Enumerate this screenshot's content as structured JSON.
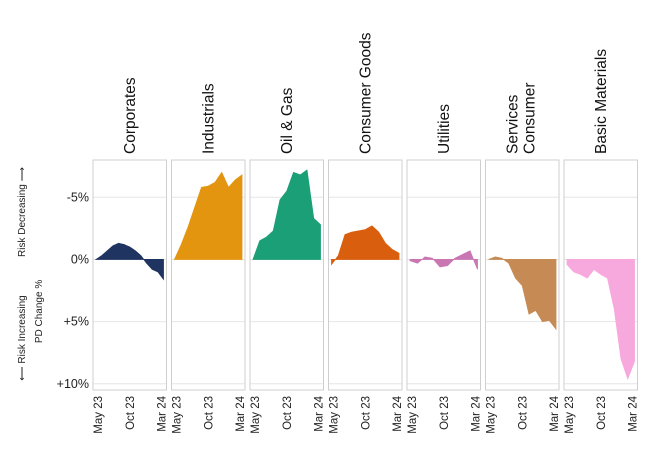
{
  "chart_data": {
    "type": "area",
    "ylabel": "PD Change %",
    "direction_labels": {
      "up": "Risk Decreasing",
      "down": "Risk Increasing",
      "up_arrow": "⟶",
      "down_arrow": "⟵"
    },
    "y_ticks": [
      {
        "value": 5,
        "label": "-5%"
      },
      {
        "value": 0,
        "label": "0%"
      },
      {
        "value": -5,
        "label": "+5%"
      },
      {
        "value": -10,
        "label": "+10%"
      }
    ],
    "ylim": [
      -10.5,
      8
    ],
    "x_ticks": [
      "May 23",
      "Oct 23",
      "Mar 24"
    ],
    "x_tick_positions": [
      0,
      5,
      10
    ],
    "grid": true,
    "panels": [
      {
        "name": "Corporates",
        "color": "#1f3460",
        "values": [
          0,
          0.3,
          0.7,
          1.1,
          1.3,
          1.2,
          1.0,
          0.7,
          0.3,
          -0.3,
          -0.8,
          -1.0,
          -1.6
        ]
      },
      {
        "name": "Industrials",
        "color": "#e3950f",
        "values": [
          0,
          1.2,
          2.6,
          4.2,
          5.8,
          5.9,
          6.2,
          7.0,
          5.8,
          6.4,
          6.8
        ]
      },
      {
        "name": "Oil & Gas",
        "color": "#1b9f77",
        "values": [
          0,
          1.5,
          1.8,
          2.3,
          4.8,
          5.5,
          7.0,
          6.8,
          7.2,
          3.3,
          2.8
        ]
      },
      {
        "name": "Consumer Goods",
        "color": "#d95f0e",
        "values": [
          -0.4,
          0.3,
          2.0,
          2.2,
          2.3,
          2.4,
          2.7,
          2.2,
          1.3,
          0.8,
          0.5
        ]
      },
      {
        "name": "Utilities",
        "color": "#c977b3",
        "values": [
          -0.1,
          -0.3,
          0.2,
          0.1,
          -0.6,
          -0.5,
          0.1,
          0.4,
          0.7,
          -0.8
        ]
      },
      {
        "name": "Consumer\nServices",
        "color": "#c68a55",
        "values": [
          0,
          0.2,
          0.1,
          -0.3,
          -1.5,
          -2.1,
          -4.4,
          -4.1,
          -5.0,
          -4.9,
          -5.6
        ]
      },
      {
        "name": "Basic Materials",
        "color": "#f7a8dd",
        "values": [
          -0.4,
          -1.0,
          -1.2,
          -1.5,
          -0.8,
          -1.2,
          -1.5,
          -4.0,
          -8.0,
          -9.6,
          -8.2
        ]
      }
    ]
  }
}
